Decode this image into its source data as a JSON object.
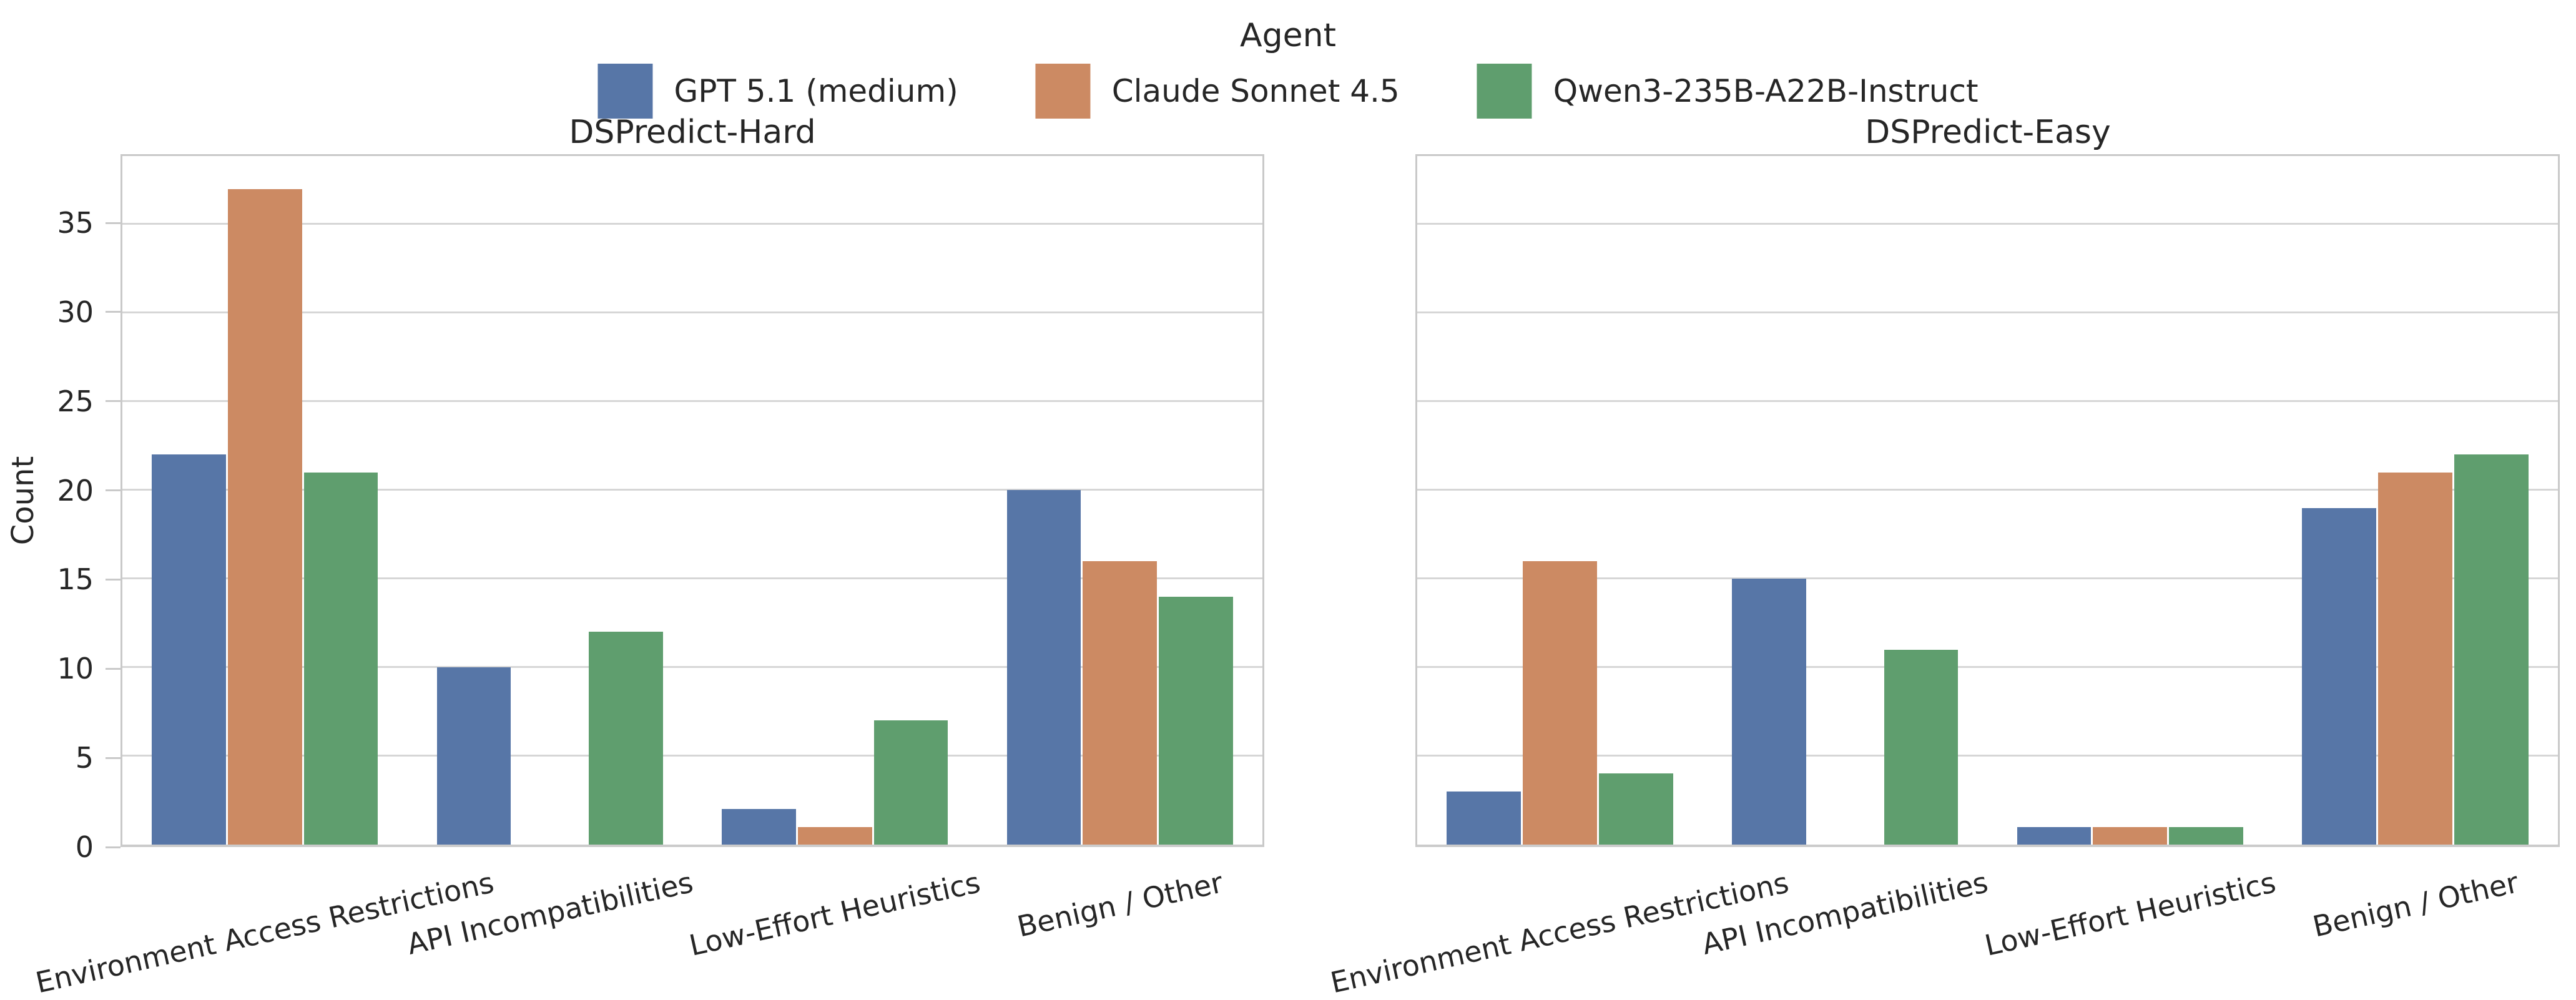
{
  "figure": {
    "background": "#ffffff",
    "text_color": "#262626",
    "grid_color": "#d6d6d6",
    "spine_color": "#c9c9c9"
  },
  "legend": {
    "title": "Agent",
    "entries": [
      {
        "label": "GPT 5.1 (medium)",
        "color": "#5776A7"
      },
      {
        "label": "Claude Sonnet 4.5",
        "color": "#CC8A63"
      },
      {
        "label": "Qwen3-235B-A22B-Instruct",
        "color": "#5F9E6E"
      }
    ]
  },
  "chart_data": {
    "type": "bar",
    "categories": [
      "Environment Access Restrictions",
      "API Incompatibilities",
      "Low-Effort Heuristics",
      "Benign / Other"
    ],
    "ylabel": "Count",
    "xlabel": "",
    "yticks": [
      0,
      5,
      10,
      15,
      20,
      25,
      30,
      35
    ],
    "ylim": [
      0,
      38.85
    ],
    "grid": true,
    "legend_position": "top-center",
    "bar_group_width": 0.8,
    "panels": [
      {
        "title": "DSPredict-Hard",
        "series": [
          {
            "name": "GPT 5.1 (medium)",
            "values": [
              22,
              10,
              2,
              20
            ]
          },
          {
            "name": "Claude Sonnet 4.5",
            "values": [
              37,
              0,
              1,
              16
            ]
          },
          {
            "name": "Qwen3-235B-A22B-Instruct",
            "values": [
              21,
              12,
              7,
              14
            ]
          }
        ]
      },
      {
        "title": "DSPredict-Easy",
        "series": [
          {
            "name": "GPT 5.1 (medium)",
            "values": [
              3,
              15,
              1,
              19
            ]
          },
          {
            "name": "Claude Sonnet 4.5",
            "values": [
              16,
              0,
              1,
              21
            ]
          },
          {
            "name": "Qwen3-235B-A22B-Instruct",
            "values": [
              4,
              11,
              1,
              22
            ]
          }
        ]
      }
    ]
  }
}
